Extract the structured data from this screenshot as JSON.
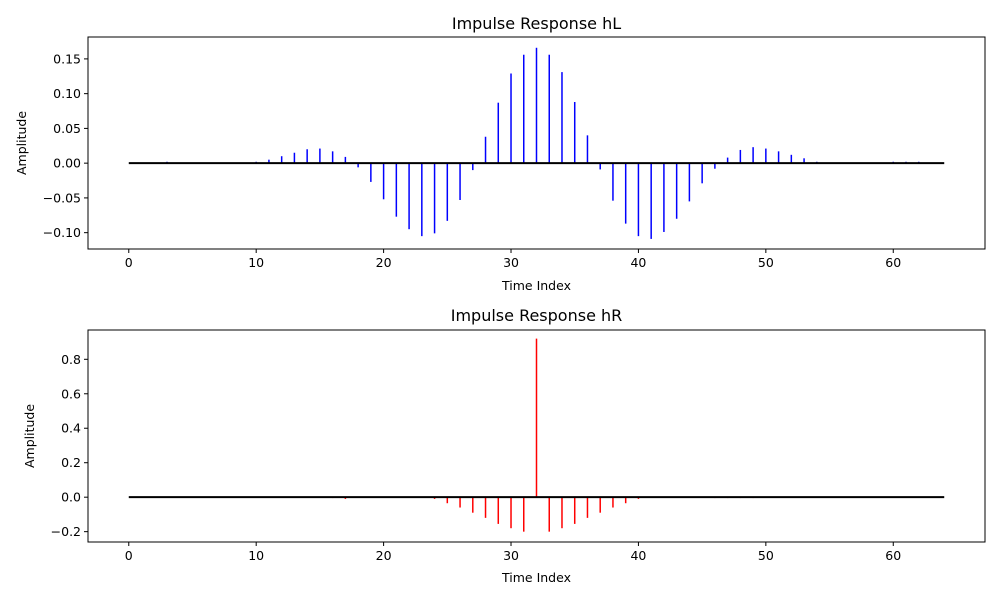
{
  "chart_data": [
    {
      "type": "stem",
      "title": "Impulse Response hL",
      "xlabel": "Time Index",
      "ylabel": "Amplitude",
      "xlim": [
        -3.2,
        67.2
      ],
      "ylim": [
        -0.1235,
        0.1815
      ],
      "xticks": [
        0,
        10,
        20,
        30,
        40,
        50,
        60
      ],
      "yticks": [
        -0.1,
        -0.05,
        0.0,
        0.05,
        0.1,
        0.15
      ],
      "ytick_labels": [
        "−0.10",
        "−0.05",
        "0.00",
        "0.05",
        "0.10",
        "0.15"
      ],
      "stem_color": "#0000ff",
      "baseline_color": "#000000",
      "grid": false,
      "x": [
        0,
        1,
        2,
        3,
        4,
        5,
        6,
        7,
        8,
        9,
        10,
        11,
        12,
        13,
        14,
        15,
        16,
        17,
        18,
        19,
        20,
        21,
        22,
        23,
        24,
        25,
        26,
        27,
        28,
        29,
        30,
        31,
        32,
        33,
        34,
        35,
        36,
        37,
        38,
        39,
        40,
        41,
        42,
        43,
        44,
        45,
        46,
        47,
        48,
        49,
        50,
        51,
        52,
        53,
        54,
        55,
        56,
        57,
        58,
        59,
        60,
        61,
        62,
        63,
        64
      ],
      "values": [
        0,
        0,
        0,
        0.002,
        0,
        0,
        0,
        0,
        0,
        0,
        0.002,
        0.005,
        0.01,
        0.015,
        0.02,
        0.021,
        0.017,
        0.009,
        -0.006,
        -0.027,
        -0.052,
        -0.077,
        -0.095,
        -0.105,
        -0.101,
        -0.083,
        -0.053,
        -0.01,
        0.038,
        0.087,
        0.129,
        0.156,
        0.166,
        0.156,
        0.131,
        0.088,
        0.04,
        -0.009,
        -0.054,
        -0.087,
        -0.105,
        -0.109,
        -0.099,
        -0.08,
        -0.055,
        -0.029,
        -0.008,
        0.008,
        0.019,
        0.023,
        0.021,
        0.017,
        0.012,
        0.007,
        0.002,
        0,
        0,
        0,
        0,
        0,
        0.002,
        0.002,
        0.002,
        0,
        0
      ]
    },
    {
      "type": "stem",
      "title": "Impulse Response hR",
      "xlabel": "Time Index",
      "ylabel": "Amplitude",
      "xlim": [
        -3.2,
        67.2
      ],
      "ylim": [
        -0.26,
        0.97
      ],
      "xticks": [
        0,
        10,
        20,
        30,
        40,
        50,
        60
      ],
      "yticks": [
        -0.2,
        0.0,
        0.2,
        0.4,
        0.6,
        0.8
      ],
      "ytick_labels": [
        "−0.2",
        "0.0",
        "0.2",
        "0.4",
        "0.6",
        "0.8"
      ],
      "stem_color": "#ff0000",
      "baseline_color": "#000000",
      "grid": false,
      "x": [
        0,
        1,
        2,
        3,
        4,
        5,
        6,
        7,
        8,
        9,
        10,
        11,
        12,
        13,
        14,
        15,
        16,
        17,
        18,
        19,
        20,
        21,
        22,
        23,
        24,
        25,
        26,
        27,
        28,
        29,
        30,
        31,
        32,
        33,
        34,
        35,
        36,
        37,
        38,
        39,
        40,
        41,
        42,
        43,
        44,
        45,
        46,
        47,
        48,
        49,
        50,
        51,
        52,
        53,
        54,
        55,
        56,
        57,
        58,
        59,
        60,
        61,
        62,
        63,
        64
      ],
      "values": [
        0,
        0,
        0,
        0,
        0,
        0,
        0,
        0,
        0,
        0,
        0,
        0,
        0,
        0,
        0,
        0,
        -0.005,
        -0.01,
        0,
        0,
        0,
        0,
        0,
        0,
        -0.01,
        -0.035,
        -0.06,
        -0.09,
        -0.12,
        -0.155,
        -0.18,
        -0.2,
        0.92,
        -0.2,
        -0.18,
        -0.155,
        -0.12,
        -0.09,
        -0.06,
        -0.035,
        -0.01,
        0,
        0,
        0,
        0,
        0,
        -0.005,
        -0.005,
        -0.005,
        -0.005,
        0,
        0,
        0,
        0,
        0,
        0,
        0,
        0,
        0,
        0,
        0,
        0,
        0,
        0,
        0
      ]
    }
  ]
}
